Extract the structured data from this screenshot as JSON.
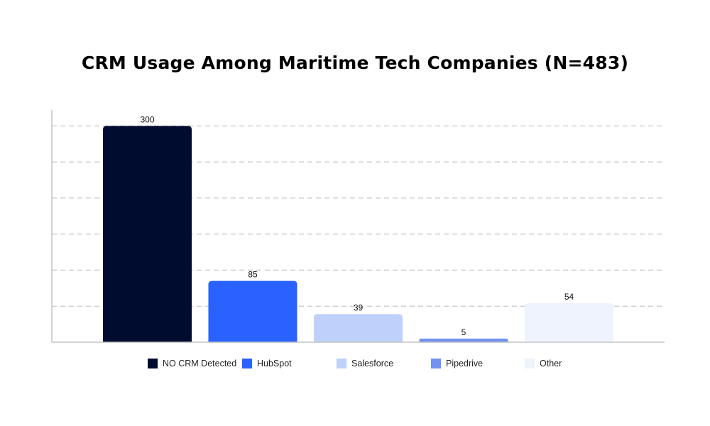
{
  "chart_data": {
    "type": "bar",
    "title": "CRM Usage Among Maritime Tech Companies (N=483)",
    "categories": [
      "NO CRM Detected",
      "HubSpot",
      "Salesforce",
      "Pipedrive",
      "Other"
    ],
    "values": [
      300,
      85,
      39,
      5,
      54
    ],
    "colors": [
      "#000c2f",
      "#2962ff",
      "#bfd0fb",
      "#7391f2",
      "#eef3fe"
    ],
    "xlabel": "",
    "ylabel": "",
    "ylim": [
      0,
      322
    ],
    "gridlines": [
      50,
      100,
      150,
      200,
      250,
      300
    ],
    "grid": true,
    "legend_position": "bottom"
  }
}
